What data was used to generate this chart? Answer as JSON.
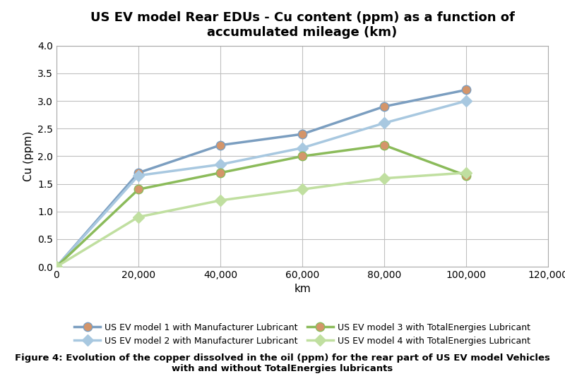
{
  "title": "US EV model Rear EDUs - Cu content (ppm) as a function of\naccumulated mileage (km)",
  "xlabel": "km",
  "ylabel": "Cu (ppm)",
  "xlim": [
    0,
    120000
  ],
  "ylim": [
    0,
    4
  ],
  "yticks": [
    0,
    0.5,
    1,
    1.5,
    2,
    2.5,
    3,
    3.5,
    4
  ],
  "xticks": [
    0,
    20000,
    40000,
    60000,
    80000,
    100000,
    120000
  ],
  "series": [
    {
      "label": "US EV model 1 with Manufacturer Lubricant",
      "x": [
        0,
        20000,
        40000,
        60000,
        80000,
        100000
      ],
      "y": [
        0,
        1.7,
        2.2,
        2.4,
        2.9,
        3.2
      ],
      "color": "#8EA9C1",
      "marker": "o",
      "marker_face": "#C9A882",
      "linewidth": 2.5,
      "markersize": 9
    },
    {
      "label": "US EV model 2 with Manufacturer Lubricant",
      "x": [
        0,
        20000,
        40000,
        60000,
        80000,
        100000
      ],
      "y": [
        0,
        1.65,
        1.85,
        2.15,
        2.6,
        3.0
      ],
      "color": "#BDD0E0",
      "marker": "D",
      "marker_face": "#BDD0E0",
      "linewidth": 2.5,
      "markersize": 8
    },
    {
      "label": "US EV model 3 with TotalEnergies Lubricant",
      "x": [
        0,
        20000,
        40000,
        60000,
        80000,
        100000
      ],
      "y": [
        0,
        1.4,
        1.7,
        2.0,
        2.2,
        1.65
      ],
      "color": "#A8C080",
      "marker": "o",
      "marker_face": "#C9A882",
      "linewidth": 2.5,
      "markersize": 9
    },
    {
      "label": "US EV model 4 with TotalEnergies Lubricant",
      "x": [
        0,
        20000,
        40000,
        60000,
        80000,
        100000
      ],
      "y": [
        0,
        0.9,
        1.2,
        1.4,
        1.6,
        1.7
      ],
      "color": "#D4E6B0",
      "marker": "D",
      "marker_face": "#D4E6B0",
      "linewidth": 2.5,
      "markersize": 8
    }
  ],
  "caption": "Figure 4: Evolution of the copper dissolved in the oil (ppm) for the rear part of US EV model Vehicles\nwith and without TotalEnergies lubricants",
  "background_color": "#FFFFFF",
  "plot_bg_color": "#FFFFFF",
  "grid_color": "#C0C0C0",
  "title_fontsize": 13,
  "axis_label_fontsize": 11,
  "tick_fontsize": 10,
  "legend_fontsize": 9
}
